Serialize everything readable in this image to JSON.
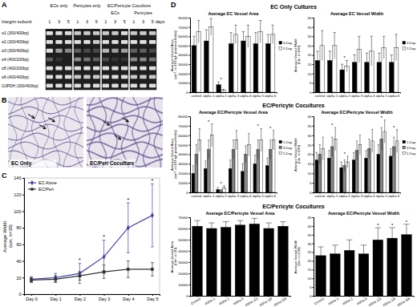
{
  "panel_labels": [
    "A",
    "B",
    "C",
    "D"
  ],
  "gel": {
    "header": "Integrin subunit",
    "groups": [
      "ECs only",
      "Pericytes only",
      "EC/Pericyte Coculture"
    ],
    "subgroups": [
      "ECs",
      "Pericytes"
    ],
    "days": [
      1,
      3,
      5
    ],
    "days_unit": "days",
    "rows": [
      "α1 (300/400bp)",
      "α2 (300/400bp)",
      "α3 (300/400bp)",
      "α4 (400/200bp)",
      "α5 (400/200bp)",
      "α6 (400/400bp)",
      "G3PDH (300/400bp)"
    ],
    "bands": [
      [
        0.9,
        0.9,
        0.9,
        0.8,
        0.8,
        0.8,
        0.8,
        0.8,
        0.9,
        0.8,
        0.8,
        0.8
      ],
      [
        0.9,
        0.9,
        0.9,
        0.9,
        0.9,
        0.8,
        0.9,
        0.9,
        0.9,
        0.9,
        0.9,
        0.9
      ],
      [
        0.9,
        0.6,
        0.5,
        0.3,
        0.2,
        0.2,
        0.7,
        0.6,
        0.6,
        0.3,
        0.3,
        0.2
      ],
      [
        0.3,
        0.1,
        0.0,
        0.5,
        0.4,
        0.3,
        0.2,
        0.1,
        0.1,
        0.5,
        0.5,
        0.4
      ],
      [
        0.9,
        0.9,
        0.9,
        0.9,
        0.9,
        0.9,
        0.9,
        0.9,
        0.9,
        0.9,
        0.9,
        0.9
      ],
      [
        0.9,
        0.9,
        0.9,
        0.8,
        0.8,
        0.8,
        0.9,
        0.9,
        0.9,
        0.8,
        0.8,
        0.8
      ],
      [
        0.9,
        0.9,
        0.9,
        0.9,
        0.9,
        0.9,
        0.9,
        0.9,
        0.9,
        0.9,
        0.9,
        0.9
      ]
    ]
  },
  "micrographs": {
    "labels": [
      "EC Only",
      "EC/Peri Coculture"
    ]
  },
  "section_titles": [
    "EC Only Cultures",
    "EC/Pericyte Cocultures",
    "EC/Pericyte Cocultures"
  ],
  "chart_data": [
    {
      "type": "line",
      "y_label": "Average Width (um, n=30)",
      "categories": [
        "Day 0",
        "Day 1",
        "Day 2",
        "Day 3",
        "Day 4",
        "Day 5"
      ],
      "ylim": [
        0,
        140
      ],
      "yticks": [
        0,
        20,
        40,
        60,
        80,
        100,
        120,
        140
      ],
      "legend": "top-left",
      "series": [
        {
          "name": "EC Alone",
          "color": "#4444aa",
          "marker": "diamond",
          "values": [
            18,
            20,
            25,
            45,
            80,
            95
          ],
          "errors": [
            3,
            5,
            12,
            20,
            30,
            38
          ]
        },
        {
          "name": "EC/Peri",
          "color": "#333333",
          "marker": "square",
          "values": [
            17,
            18,
            22,
            27,
            30,
            30
          ],
          "errors": [
            3,
            4,
            5,
            8,
            10,
            8
          ]
        }
      ],
      "annotations": [
        {
          "text": "*",
          "category": "Day 2"
        },
        {
          "text": "*",
          "category": "Day 3"
        },
        {
          "text": "*",
          "category": "Day 4"
        },
        {
          "text": "*",
          "category": "Day 5"
        }
      ]
    },
    {
      "type": "bar",
      "title": "Average EC Vessel Area",
      "y_label": "Average Vessel Area (um², n=10 high powered fields)",
      "categories": [
        "control",
        "alpha 1",
        "alpha 2",
        "alpha 3",
        "alpha 4",
        "alpha 5",
        "alpha 6"
      ],
      "ylim": [
        0,
        80000
      ],
      "yticks": [
        0,
        10000,
        20000,
        30000,
        40000,
        50000,
        60000,
        70000,
        80000
      ],
      "legend": "right",
      "series": [
        {
          "name": "3 Day",
          "color": "#000000",
          "values": [
            50000,
            55000,
            8000,
            52000,
            55000,
            52000,
            52000
          ],
          "errors": [
            10000,
            12000,
            3000,
            12000,
            10000,
            12000,
            10000
          ]
        },
        {
          "name": "5 Day",
          "color": "#ffffff",
          "values": [
            65000,
            70000,
            2000,
            62000,
            60000,
            65000,
            62000
          ],
          "errors": [
            12000,
            9000,
            1000,
            10000,
            12000,
            12000,
            10000
          ]
        }
      ],
      "annotations": [
        {
          "text": "*",
          "category": "alpha 2"
        }
      ]
    },
    {
      "type": "bar",
      "title": "Average EC Vessel Width",
      "y_label": "Average Vessel Width (um, n=100)",
      "categories": [
        "control",
        "alpha 1",
        "alpha 2",
        "alpha 3",
        "alpha 4",
        "alpha 5",
        "alpha 6"
      ],
      "ylim": [
        0,
        40
      ],
      "yticks": [
        0,
        5,
        10,
        15,
        20,
        25,
        30,
        35,
        40
      ],
      "legend": "right",
      "series": [
        {
          "name": "3 Day",
          "color": "#000000",
          "values": [
            17,
            17,
            12,
            16,
            16,
            16,
            16
          ],
          "errors": [
            5,
            5,
            3,
            4,
            5,
            5,
            4
          ]
        },
        {
          "name": "5 Day",
          "color": "#ffffff",
          "values": [
            25,
            25,
            14,
            23,
            22,
            24,
            24
          ],
          "errors": [
            8,
            7,
            3,
            7,
            8,
            6,
            7
          ]
        }
      ],
      "annotations": [
        {
          "text": "*",
          "category": "alpha 2"
        }
      ]
    },
    {
      "type": "bar",
      "title": "Average EC/Pericyte Vessel Area",
      "y_label": "Average Vessel Area (um², n=10 high powered fields)",
      "categories": [
        "control",
        "alpha 1",
        "alpha 2",
        "alpha 3",
        "alpha 4",
        "alpha 5",
        "alpha 6"
      ],
      "ylim": [
        0,
        80000
      ],
      "yticks": [
        0,
        10000,
        20000,
        30000,
        40000,
        50000,
        60000,
        70000,
        80000
      ],
      "legend": "right",
      "series": [
        {
          "name": "1 Day",
          "color": "#000000",
          "values": [
            20000,
            25000,
            3000,
            25000,
            22000,
            30000,
            28000
          ],
          "errors": [
            8000,
            8000,
            2000,
            9000,
            8000,
            9000,
            8000
          ]
        },
        {
          "name": "3 Day",
          "color": "#888888",
          "values": [
            40000,
            45000,
            2000,
            45000,
            40000,
            45000,
            45000
          ],
          "errors": [
            10000,
            10000,
            1000,
            10000,
            9000,
            10000,
            10000
          ]
        },
        {
          "name": "5 Day",
          "color": "#ffffff",
          "values": [
            55000,
            60000,
            5000,
            55000,
            50000,
            55000,
            55000
          ],
          "errors": [
            12000,
            12000,
            2000,
            10000,
            12000,
            12000,
            10000
          ]
        }
      ],
      "annotations": [
        {
          "text": "*",
          "category": "alpha 1"
        },
        {
          "text": "*",
          "category": "alpha 2"
        },
        {
          "text": "*",
          "category": "alpha 5"
        },
        {
          "text": "*",
          "category": "alpha 6"
        }
      ]
    },
    {
      "type": "bar",
      "title": "Average EC/Pericyte Vessel Width",
      "y_label": "Average Vessel Width (um, n=100)",
      "categories": [
        "control",
        "alpha 1",
        "alpha 2",
        "alpha 3",
        "alpha 4",
        "alpha 5",
        "alpha 6"
      ],
      "ylim": [
        0,
        40
      ],
      "yticks": [
        0,
        5,
        10,
        15,
        20,
        25,
        30,
        35,
        40
      ],
      "legend": "right",
      "series": [
        {
          "name": "1 Day",
          "color": "#000000",
          "values": [
            17,
            18,
            13,
            17,
            18,
            20,
            19
          ],
          "errors": [
            4,
            4,
            3,
            4,
            4,
            5,
            4
          ]
        },
        {
          "name": "3 Day",
          "color": "#888888",
          "values": [
            20,
            24,
            14,
            22,
            23,
            28,
            24
          ],
          "errors": [
            5,
            5,
            3,
            5,
            5,
            6,
            5
          ]
        },
        {
          "name": "5 Day",
          "color": "#ffffff",
          "values": [
            23,
            28,
            16,
            25,
            27,
            32,
            27
          ],
          "errors": [
            6,
            6,
            3,
            5,
            6,
            6,
            6
          ]
        }
      ],
      "annotations": [
        {
          "text": "*",
          "category": "alpha 1"
        },
        {
          "text": "*",
          "category": "alpha 2"
        },
        {
          "text": "*",
          "category": "alpha 5"
        },
        {
          "text": "*",
          "category": "alpha 6"
        }
      ]
    },
    {
      "type": "bar",
      "title": "Average EC/Pericyte Vessel Area",
      "y_label": "Average Vessel Area (um², n=10)",
      "categories": [
        "Control",
        "alpha 1",
        "alpha 2",
        "alpha 6",
        "alpha 1/3",
        "alpha 1/6",
        "alpha 3/6"
      ],
      "ylim": [
        0,
        70000
      ],
      "yticks": [
        0,
        10000,
        20000,
        30000,
        40000,
        50000,
        60000,
        70000
      ],
      "series": [
        {
          "color": "#000000",
          "values": [
            62000,
            60000,
            61000,
            63000,
            64000,
            60000,
            62000
          ],
          "errors": [
            5000,
            5000,
            5000,
            4000,
            5000,
            5000,
            4000
          ]
        }
      ]
    },
    {
      "type": "bar",
      "title": "Average EC/Pericyte Vessel Width",
      "y_label": "Average Vessel Width (um, n=200)",
      "categories": [
        "Control",
        "alpha 1",
        "alpha 2",
        "alpha 6",
        "alpha 1/3",
        "alpha 1/6",
        "alpha 3/6"
      ],
      "ylim": [
        0,
        45
      ],
      "yticks": [
        0,
        5,
        10,
        15,
        20,
        25,
        30,
        35,
        40,
        45
      ],
      "series": [
        {
          "color": "#000000",
          "values": [
            23,
            24,
            26,
            24,
            32,
            33,
            35
          ],
          "errors": [
            5,
            5,
            6,
            5,
            7,
            6,
            6
          ]
        }
      ],
      "annotations": [
        {
          "text": "*",
          "category": "alpha 1/3"
        },
        {
          "text": "*",
          "category": "alpha 1/6"
        },
        {
          "text": "*",
          "category": "alpha 3/6"
        }
      ]
    }
  ]
}
